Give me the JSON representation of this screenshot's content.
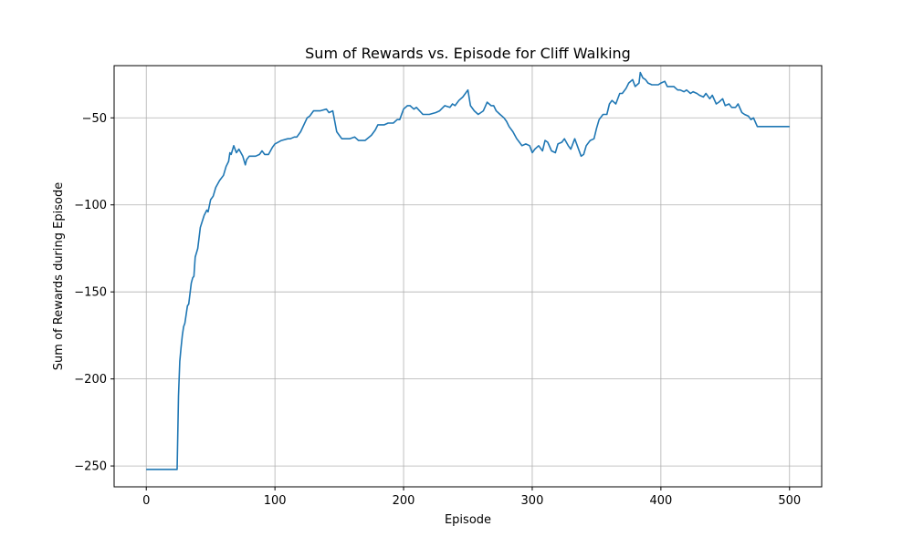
{
  "chart_data": {
    "type": "line",
    "title": "Sum of Rewards vs. Episode for Cliff Walking",
    "xlabel": "Episode",
    "ylabel": "Sum of Rewards during Episode",
    "xlim": [
      -25,
      525
    ],
    "ylim": [
      -262,
      -20
    ],
    "xticks": [
      0,
      100,
      200,
      300,
      400,
      500
    ],
    "xtick_labels": [
      "0",
      "100",
      "200",
      "300",
      "400",
      "500"
    ],
    "yticks": [
      -250,
      -200,
      -150,
      -100,
      -50
    ],
    "ytick_labels": [
      "−250",
      "−200",
      "−150",
      "−100",
      "−50"
    ],
    "grid": true,
    "line_color": "#1f77b4",
    "series": [
      {
        "x": [
          0,
          24,
          25,
          26,
          27,
          28,
          29,
          30,
          32,
          33,
          35,
          36,
          37,
          38,
          40,
          42,
          45,
          47,
          48,
          50,
          52,
          54,
          57,
          60,
          62,
          64,
          65,
          66,
          68,
          70,
          72,
          75,
          77,
          78,
          80,
          85,
          88,
          90,
          92,
          95,
          98,
          100,
          105,
          110,
          112,
          115,
          117,
          120,
          125,
          127,
          130,
          132,
          135,
          140,
          142,
          145,
          148,
          150,
          152,
          155,
          158,
          162,
          165,
          170,
          175,
          178,
          180,
          185,
          188,
          192,
          195,
          197,
          200,
          203,
          205,
          208,
          210,
          215,
          220,
          225,
          228,
          232,
          236,
          238,
          240,
          243,
          246,
          250,
          252,
          255,
          258,
          262,
          265,
          268,
          270,
          272,
          275,
          278,
          280,
          282,
          285,
          288,
          290,
          292,
          295,
          298,
          300,
          302,
          305,
          308,
          310,
          312,
          315,
          318,
          320,
          323,
          325,
          328,
          330,
          333,
          335,
          338,
          340,
          342,
          345,
          348,
          350,
          352,
          355,
          358,
          360,
          362,
          365,
          368,
          370,
          373,
          375,
          378,
          380,
          383,
          384,
          386,
          388,
          390,
          393,
          395,
          398,
          400,
          403,
          405,
          408,
          410,
          413,
          415,
          418,
          420,
          423,
          425,
          428,
          430,
          433,
          435,
          438,
          440,
          443,
          445,
          448,
          450,
          453,
          455,
          458,
          460,
          463,
          465,
          468,
          470,
          472,
          475,
          480,
          500
        ],
        "y": [
          -252,
          -252,
          -210,
          -190,
          -182,
          -175,
          -170,
          -168,
          -158,
          -157,
          -145,
          -142,
          -141,
          -130,
          -125,
          -113,
          -106,
          -103,
          -104,
          -97,
          -95,
          -90,
          -86,
          -83,
          -78,
          -75,
          -70,
          -71,
          -66,
          -70,
          -68,
          -72,
          -77,
          -74,
          -72,
          -72,
          -71,
          -69,
          -71,
          -71,
          -67,
          -65,
          -63,
          -62,
          -62,
          -61,
          -61,
          -58,
          -50,
          -49,
          -46,
          -46,
          -46,
          -45,
          -47,
          -46,
          -58,
          -60,
          -62,
          -62,
          -62,
          -61,
          -63,
          -63,
          -60,
          -57,
          -54,
          -54,
          -53,
          -53,
          -51,
          -51,
          -45,
          -43,
          -43,
          -45,
          -44,
          -48,
          -48,
          -47,
          -46,
          -43,
          -44,
          -42,
          -43,
          -40,
          -38,
          -34,
          -43,
          -46,
          -48,
          -46,
          -41,
          -43,
          -43,
          -46,
          -48,
          -50,
          -52,
          -55,
          -58,
          -62,
          -64,
          -66,
          -65,
          -66,
          -70,
          -68,
          -66,
          -69,
          -63,
          -64,
          -69,
          -70,
          -65,
          -64,
          -62,
          -66,
          -68,
          -62,
          -66,
          -72,
          -71,
          -66,
          -63,
          -62,
          -56,
          -51,
          -48,
          -48,
          -42,
          -40,
          -42,
          -36,
          -36,
          -33,
          -30,
          -28,
          -32,
          -30,
          -24,
          -27,
          -28,
          -30,
          -31,
          -31,
          -31,
          -30,
          -29,
          -32,
          -32,
          -32,
          -34,
          -34,
          -35,
          -34,
          -36,
          -35,
          -36,
          -37,
          -38,
          -36,
          -39,
          -37,
          -42,
          -41,
          -39,
          -43,
          -42,
          -44,
          -44,
          -42,
          -47,
          -48,
          -49,
          -51,
          -50,
          -55,
          -55,
          -55
        ]
      }
    ]
  }
}
